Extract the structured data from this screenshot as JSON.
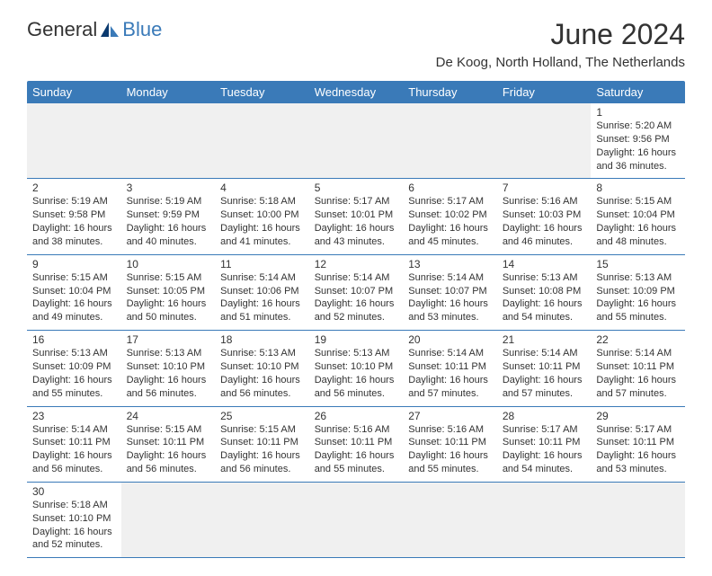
{
  "logo": {
    "general": "General",
    "blue": "Blue"
  },
  "title": "June 2024",
  "location": "De Koog, North Holland, The Netherlands",
  "colors": {
    "accent": "#3a7ab8",
    "text": "#333333",
    "empty_bg": "#f0f0f0",
    "bg": "#ffffff"
  },
  "day_headers": [
    "Sunday",
    "Monday",
    "Tuesday",
    "Wednesday",
    "Thursday",
    "Friday",
    "Saturday"
  ],
  "weeks": [
    [
      null,
      null,
      null,
      null,
      null,
      null,
      {
        "n": "1",
        "sunrise": "Sunrise: 5:20 AM",
        "sunset": "Sunset: 9:56 PM",
        "daylight": "Daylight: 16 hours and 36 minutes."
      }
    ],
    [
      {
        "n": "2",
        "sunrise": "Sunrise: 5:19 AM",
        "sunset": "Sunset: 9:58 PM",
        "daylight": "Daylight: 16 hours and 38 minutes."
      },
      {
        "n": "3",
        "sunrise": "Sunrise: 5:19 AM",
        "sunset": "Sunset: 9:59 PM",
        "daylight": "Daylight: 16 hours and 40 minutes."
      },
      {
        "n": "4",
        "sunrise": "Sunrise: 5:18 AM",
        "sunset": "Sunset: 10:00 PM",
        "daylight": "Daylight: 16 hours and 41 minutes."
      },
      {
        "n": "5",
        "sunrise": "Sunrise: 5:17 AM",
        "sunset": "Sunset: 10:01 PM",
        "daylight": "Daylight: 16 hours and 43 minutes."
      },
      {
        "n": "6",
        "sunrise": "Sunrise: 5:17 AM",
        "sunset": "Sunset: 10:02 PM",
        "daylight": "Daylight: 16 hours and 45 minutes."
      },
      {
        "n": "7",
        "sunrise": "Sunrise: 5:16 AM",
        "sunset": "Sunset: 10:03 PM",
        "daylight": "Daylight: 16 hours and 46 minutes."
      },
      {
        "n": "8",
        "sunrise": "Sunrise: 5:15 AM",
        "sunset": "Sunset: 10:04 PM",
        "daylight": "Daylight: 16 hours and 48 minutes."
      }
    ],
    [
      {
        "n": "9",
        "sunrise": "Sunrise: 5:15 AM",
        "sunset": "Sunset: 10:04 PM",
        "daylight": "Daylight: 16 hours and 49 minutes."
      },
      {
        "n": "10",
        "sunrise": "Sunrise: 5:15 AM",
        "sunset": "Sunset: 10:05 PM",
        "daylight": "Daylight: 16 hours and 50 minutes."
      },
      {
        "n": "11",
        "sunrise": "Sunrise: 5:14 AM",
        "sunset": "Sunset: 10:06 PM",
        "daylight": "Daylight: 16 hours and 51 minutes."
      },
      {
        "n": "12",
        "sunrise": "Sunrise: 5:14 AM",
        "sunset": "Sunset: 10:07 PM",
        "daylight": "Daylight: 16 hours and 52 minutes."
      },
      {
        "n": "13",
        "sunrise": "Sunrise: 5:14 AM",
        "sunset": "Sunset: 10:07 PM",
        "daylight": "Daylight: 16 hours and 53 minutes."
      },
      {
        "n": "14",
        "sunrise": "Sunrise: 5:13 AM",
        "sunset": "Sunset: 10:08 PM",
        "daylight": "Daylight: 16 hours and 54 minutes."
      },
      {
        "n": "15",
        "sunrise": "Sunrise: 5:13 AM",
        "sunset": "Sunset: 10:09 PM",
        "daylight": "Daylight: 16 hours and 55 minutes."
      }
    ],
    [
      {
        "n": "16",
        "sunrise": "Sunrise: 5:13 AM",
        "sunset": "Sunset: 10:09 PM",
        "daylight": "Daylight: 16 hours and 55 minutes."
      },
      {
        "n": "17",
        "sunrise": "Sunrise: 5:13 AM",
        "sunset": "Sunset: 10:10 PM",
        "daylight": "Daylight: 16 hours and 56 minutes."
      },
      {
        "n": "18",
        "sunrise": "Sunrise: 5:13 AM",
        "sunset": "Sunset: 10:10 PM",
        "daylight": "Daylight: 16 hours and 56 minutes."
      },
      {
        "n": "19",
        "sunrise": "Sunrise: 5:13 AM",
        "sunset": "Sunset: 10:10 PM",
        "daylight": "Daylight: 16 hours and 56 minutes."
      },
      {
        "n": "20",
        "sunrise": "Sunrise: 5:14 AM",
        "sunset": "Sunset: 10:11 PM",
        "daylight": "Daylight: 16 hours and 57 minutes."
      },
      {
        "n": "21",
        "sunrise": "Sunrise: 5:14 AM",
        "sunset": "Sunset: 10:11 PM",
        "daylight": "Daylight: 16 hours and 57 minutes."
      },
      {
        "n": "22",
        "sunrise": "Sunrise: 5:14 AM",
        "sunset": "Sunset: 10:11 PM",
        "daylight": "Daylight: 16 hours and 57 minutes."
      }
    ],
    [
      {
        "n": "23",
        "sunrise": "Sunrise: 5:14 AM",
        "sunset": "Sunset: 10:11 PM",
        "daylight": "Daylight: 16 hours and 56 minutes."
      },
      {
        "n": "24",
        "sunrise": "Sunrise: 5:15 AM",
        "sunset": "Sunset: 10:11 PM",
        "daylight": "Daylight: 16 hours and 56 minutes."
      },
      {
        "n": "25",
        "sunrise": "Sunrise: 5:15 AM",
        "sunset": "Sunset: 10:11 PM",
        "daylight": "Daylight: 16 hours and 56 minutes."
      },
      {
        "n": "26",
        "sunrise": "Sunrise: 5:16 AM",
        "sunset": "Sunset: 10:11 PM",
        "daylight": "Daylight: 16 hours and 55 minutes."
      },
      {
        "n": "27",
        "sunrise": "Sunrise: 5:16 AM",
        "sunset": "Sunset: 10:11 PM",
        "daylight": "Daylight: 16 hours and 55 minutes."
      },
      {
        "n": "28",
        "sunrise": "Sunrise: 5:17 AM",
        "sunset": "Sunset: 10:11 PM",
        "daylight": "Daylight: 16 hours and 54 minutes."
      },
      {
        "n": "29",
        "sunrise": "Sunrise: 5:17 AM",
        "sunset": "Sunset: 10:11 PM",
        "daylight": "Daylight: 16 hours and 53 minutes."
      }
    ],
    [
      {
        "n": "30",
        "sunrise": "Sunrise: 5:18 AM",
        "sunset": "Sunset: 10:10 PM",
        "daylight": "Daylight: 16 hours and 52 minutes."
      },
      null,
      null,
      null,
      null,
      null,
      null
    ]
  ]
}
